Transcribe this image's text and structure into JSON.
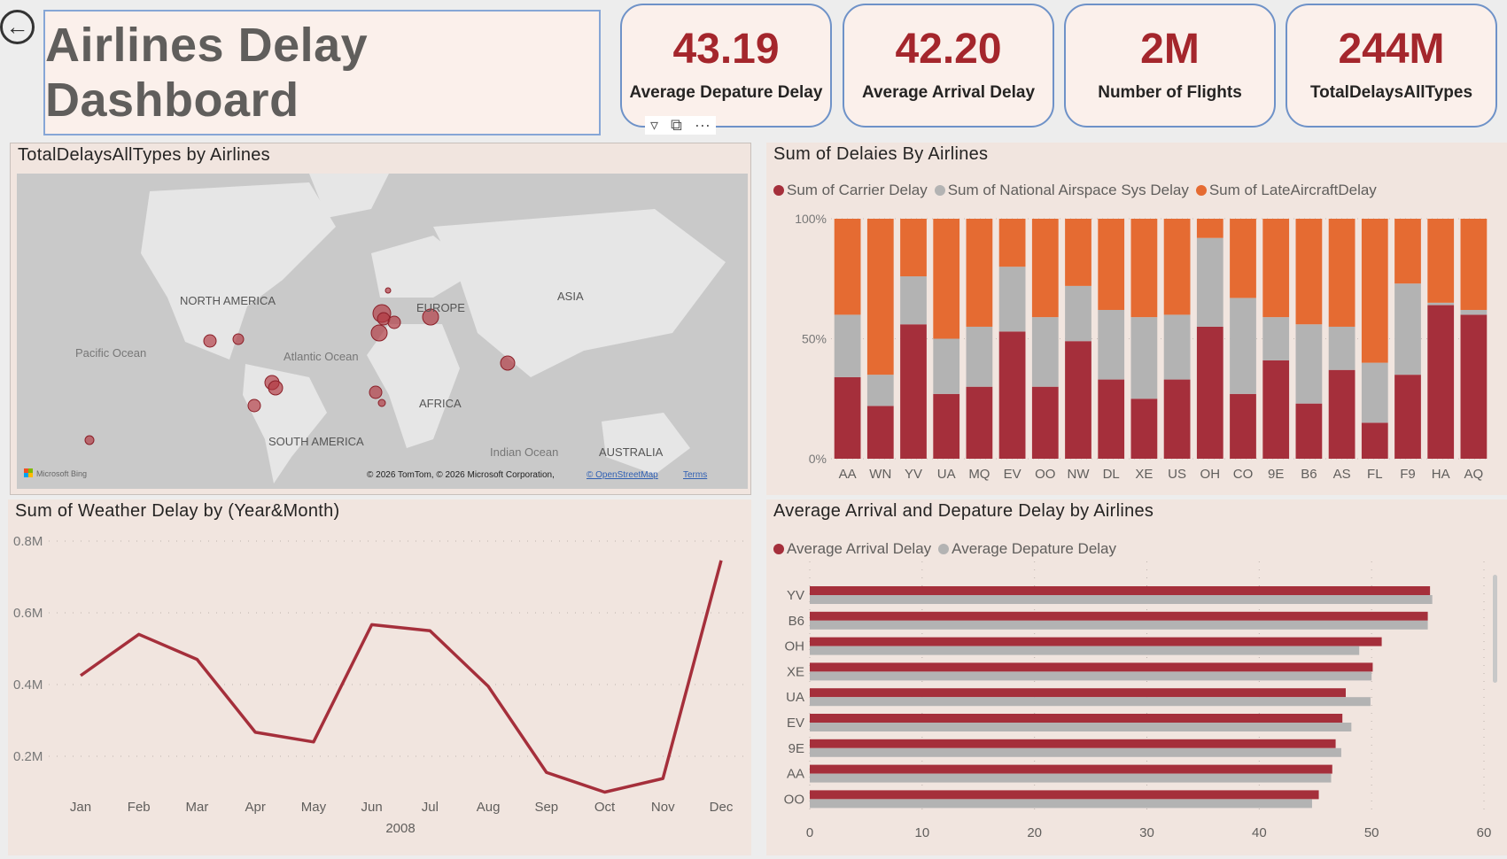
{
  "header": {
    "title": "Airlines Delay Dashboard",
    "back_icon": "back-arrow-icon"
  },
  "kpis": [
    {
      "value": "43.19",
      "label": "Average Depature Delay"
    },
    {
      "value": "42.20",
      "label": "Average Arrival Delay"
    },
    {
      "value": "2M",
      "label": "Number of Flights"
    },
    {
      "value": "244M",
      "label": "TotalDelaysAllTypes"
    }
  ],
  "visual_header_icons": [
    "filter-icon",
    "focus-mode-icon",
    "more-options-icon"
  ],
  "visual_header": {
    "more": "···"
  },
  "map": {
    "title": "TotalDelaysAllTypes by Airlines",
    "labels": {
      "north_america": "NORTH AMERICA",
      "asia": "ASIA",
      "europe": "EUROPE",
      "pacific": "Pacific Ocean",
      "atlantic": "Atlantic Ocean",
      "africa": "AFRICA",
      "south_america": "SOUTH AMERICA",
      "indian": "Indian Ocean",
      "australia": "AUSTRALIA"
    },
    "bing": "Microsoft Bing",
    "copyright": "© 2026 TomTom, © 2026 Microsoft Corporation,",
    "osm_link": "© OpenStreetMap",
    "terms_link": "Terms"
  },
  "colors": {
    "carrier": "#a52f3b",
    "nas": "#b3b3b3",
    "late": "#e56b32",
    "arrival": "#a52f3b",
    "departure": "#b3b3b3",
    "line": "#a52f3b"
  },
  "chart_data": [
    {
      "type": "bar",
      "stacked": "100%",
      "title": "Sum of Delaies By Airlines",
      "categories": [
        "AA",
        "WN",
        "YV",
        "UA",
        "MQ",
        "EV",
        "OO",
        "NW",
        "DL",
        "XE",
        "US",
        "OH",
        "CO",
        "9E",
        "B6",
        "AS",
        "FL",
        "F9",
        "HA",
        "AQ"
      ],
      "series": [
        {
          "name": "Sum of Carrier Delay",
          "values": [
            34,
            22,
            56,
            27,
            30,
            53,
            30,
            49,
            33,
            25,
            33,
            55,
            27,
            41,
            23,
            37,
            15,
            35,
            64,
            60
          ]
        },
        {
          "name": "Sum of National Airspace Sys  Delay",
          "values": [
            26,
            13,
            20,
            23,
            25,
            27,
            29,
            23,
            29,
            34,
            27,
            37,
            40,
            18,
            33,
            18,
            25,
            38,
            1,
            2
          ]
        },
        {
          "name": "Sum of LateAircraftDelay",
          "values": [
            40,
            65,
            24,
            50,
            45,
            20,
            41,
            28,
            38,
            41,
            40,
            8,
            33,
            41,
            44,
            45,
            60,
            27,
            35,
            38
          ]
        }
      ],
      "yticks": [
        "0%",
        "50%",
        "100%"
      ],
      "ylim": [
        0,
        100
      ],
      "legend": "top-left"
    },
    {
      "type": "line",
      "title": "Sum of Weather Delay by (Year&Month)",
      "x": [
        "Jan",
        "Feb",
        "Mar",
        "Apr",
        "May",
        "Jun",
        "Jul",
        "Aug",
        "Sep",
        "Oct",
        "Nov",
        "Dec"
      ],
      "xlabel": "2008",
      "series": [
        {
          "name": "Sum of Weather Delay",
          "values": [
            0.425,
            0.54,
            0.47,
            0.267,
            0.24,
            0.567,
            0.55,
            0.395,
            0.155,
            0.1,
            0.138,
            0.746
          ]
        }
      ],
      "yticks": [
        "0.2M",
        "0.4M",
        "0.6M",
        "0.8M"
      ],
      "ylim": [
        0,
        0.8
      ],
      "grid": true
    },
    {
      "type": "bar",
      "orientation": "horizontal",
      "title": "Average Arrival and Depature Delay by Airlines",
      "categories": [
        "YV",
        "B6",
        "OH",
        "XE",
        "UA",
        "EV",
        "9E",
        "AA",
        "OO"
      ],
      "series": [
        {
          "name": "Average Arrival Delay",
          "values": [
            55.2,
            55.0,
            50.9,
            50.1,
            47.7,
            47.4,
            46.8,
            46.5,
            45.3
          ]
        },
        {
          "name": "Average Depature Delay",
          "values": [
            55.4,
            55.0,
            48.9,
            50.0,
            49.9,
            48.2,
            47.3,
            46.4,
            44.7
          ]
        }
      ],
      "xticks": [
        "0",
        "10",
        "20",
        "30",
        "40",
        "50",
        "60"
      ],
      "xlim": [
        0,
        60
      ],
      "legend": "top-left"
    }
  ]
}
